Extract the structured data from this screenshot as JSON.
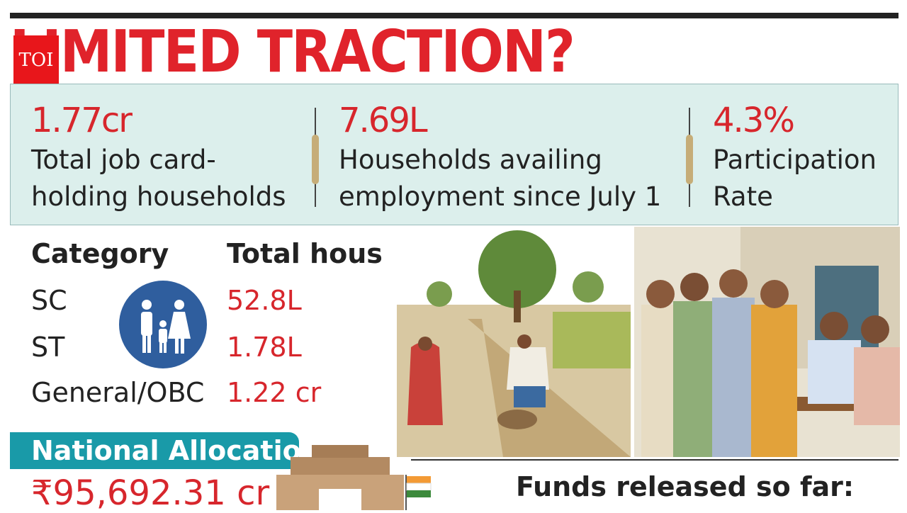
{
  "logo": "TOI",
  "title": "LIMITED TRACTION?",
  "stats": [
    {
      "value": "1.77cr",
      "lines": [
        "Total job card-",
        "holding households"
      ]
    },
    {
      "value": "7.69L",
      "lines": [
        "Households availing",
        "employment since July 1"
      ]
    },
    {
      "value": "4.3%",
      "lines": [
        "Participation",
        "Rate"
      ]
    }
  ],
  "table": {
    "headers": [
      "Category",
      "Total households"
    ],
    "rows": [
      [
        "SC",
        "52.8L"
      ],
      [
        "ST",
        "1.78L"
      ],
      [
        "General/OBC",
        "1.22 cr"
      ]
    ]
  },
  "allocation": {
    "label": "National Allocation",
    "value": "₹95,692.31 cr"
  },
  "funds": {
    "label": "Funds released so far:"
  }
}
